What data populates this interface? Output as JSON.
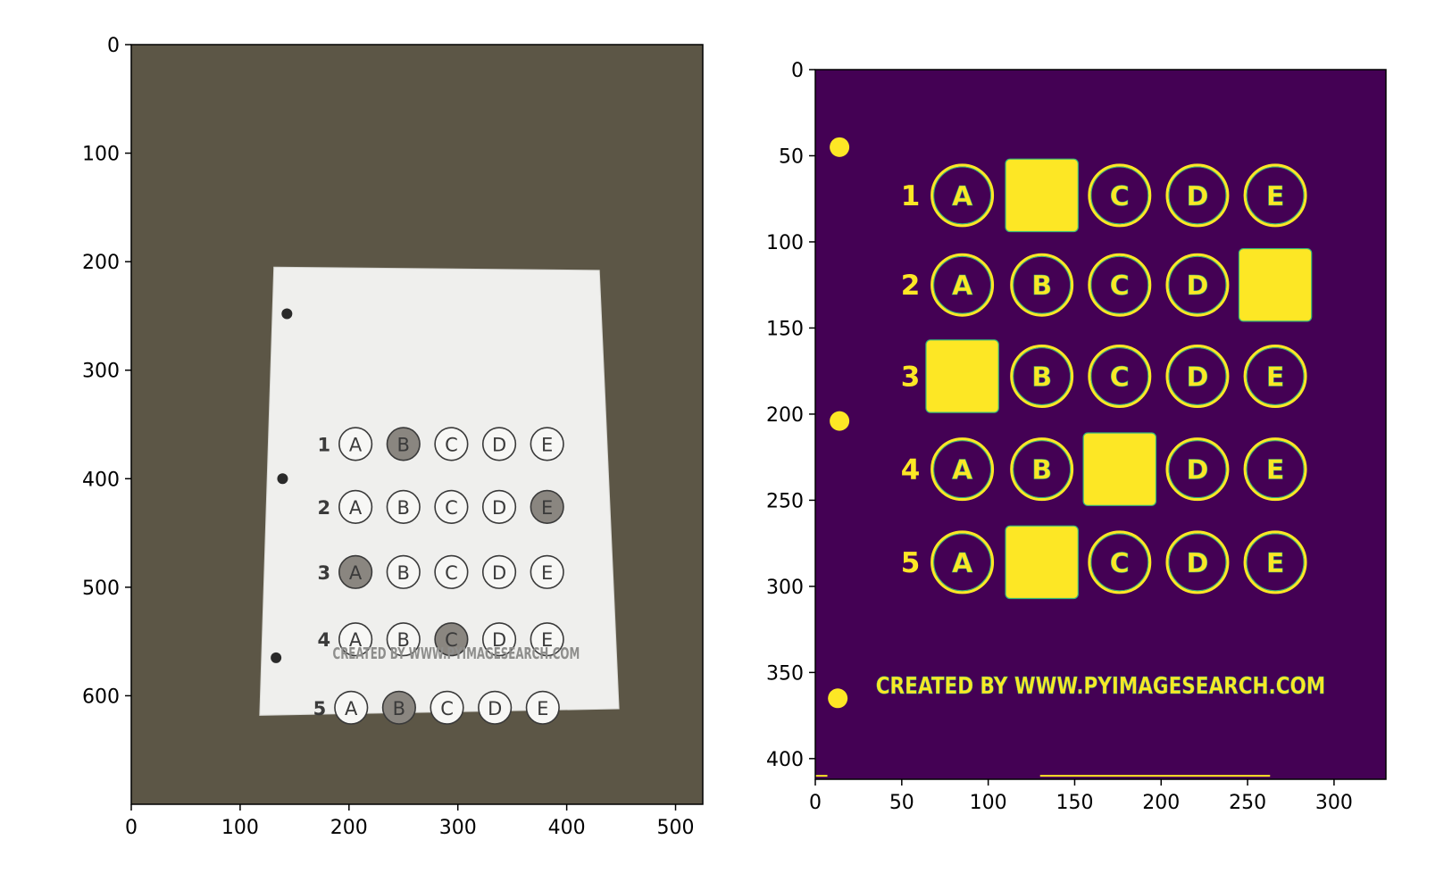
{
  "chart_data": [
    {
      "type": "image",
      "panel": "left",
      "description_source": "photograph of bubble-sheet test on dark background",
      "xlim": [
        0,
        525
      ],
      "ylim": [
        700,
        0
      ],
      "xticks": [
        0,
        100,
        200,
        300,
        400,
        500
      ],
      "yticks": [
        0,
        100,
        200,
        300,
        400,
        500,
        600
      ],
      "grid": false,
      "colors": {
        "background": "#5c5646",
        "paper": "#efefed",
        "ink": "#3a3a3a",
        "filled": "#8a8680"
      },
      "sheet": {
        "rows": [
          "1",
          "2",
          "3",
          "4",
          "5"
        ],
        "choices": [
          "A",
          "B",
          "C",
          "D",
          "E"
        ],
        "filled": [
          "B",
          "E",
          "A",
          "C",
          "B"
        ],
        "footer": "CREATED BY WWW.PYIMAGESEARCH.COM"
      }
    },
    {
      "type": "image",
      "panel": "right",
      "xlim": [
        0,
        330
      ],
      "ylim": [
        412,
        0
      ],
      "xticks": [
        0,
        50,
        100,
        150,
        200,
        250,
        300
      ],
      "yticks": [
        0,
        50,
        100,
        150,
        200,
        250,
        300,
        350,
        400
      ],
      "grid": false,
      "colors": {
        "background": "#440154",
        "foreground": "#fde725",
        "edge": "#35b779"
      },
      "sheet": {
        "rows": [
          "1",
          "2",
          "3",
          "4",
          "5"
        ],
        "choices": [
          "A",
          "B",
          "C",
          "D",
          "E"
        ],
        "filled": [
          "B",
          "E",
          "A",
          "C",
          "B"
        ],
        "footer": "CREATED BY WWW.PYIMAGESEARCH.COM"
      }
    }
  ]
}
